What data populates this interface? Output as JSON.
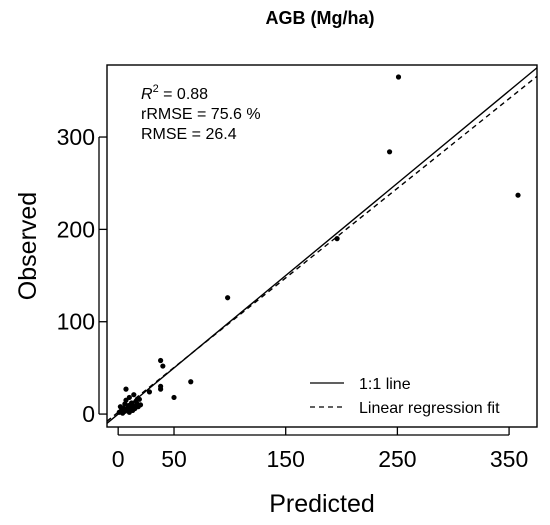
{
  "chart_data": {
    "type": "scatter",
    "title": "AGB (Mg/ha)",
    "xlabel": "Predicted",
    "ylabel": "Observed",
    "xlim": [
      -10,
      375
    ],
    "ylim": [
      -14,
      378
    ],
    "xticks": [
      0,
      50,
      150,
      250,
      350
    ],
    "xtick_labels": [
      "0",
      "50",
      "150",
      "250",
      "350"
    ],
    "yticks": [
      0,
      100,
      200,
      300
    ],
    "ytick_labels": [
      "0",
      "100",
      "200",
      "300"
    ],
    "stats": {
      "r2_prefix": "R",
      "r2_sup": "2",
      "r2_value": " = 0.88",
      "rrmse": "rRMSE = 75.6 %",
      "rmse": "RMSE = 26.4"
    },
    "points": [
      [
        1,
        2
      ],
      [
        2,
        8
      ],
      [
        3,
        4
      ],
      [
        4,
        1
      ],
      [
        5,
        6
      ],
      [
        6,
        11
      ],
      [
        6,
        3
      ],
      [
        7,
        15
      ],
      [
        7,
        27
      ],
      [
        8,
        5
      ],
      [
        9,
        9
      ],
      [
        10,
        2
      ],
      [
        10,
        18
      ],
      [
        11,
        7
      ],
      [
        12,
        12
      ],
      [
        13,
        4
      ],
      [
        14,
        21
      ],
      [
        14,
        9
      ],
      [
        15,
        6
      ],
      [
        16,
        14
      ],
      [
        17,
        11
      ],
      [
        18,
        8
      ],
      [
        19,
        16
      ],
      [
        20,
        10
      ],
      [
        28,
        24
      ],
      [
        38,
        30
      ],
      [
        38,
        27
      ],
      [
        38,
        58
      ],
      [
        40,
        52
      ],
      [
        50,
        18
      ],
      [
        65,
        35
      ],
      [
        98,
        126
      ],
      [
        196,
        190
      ],
      [
        243,
        284
      ],
      [
        251,
        365
      ],
      [
        358,
        237
      ]
    ],
    "lines": [
      {
        "name": "1:1 line",
        "style": "solid",
        "intercept": 0,
        "slope": 1
      },
      {
        "name": "Linear regression fit",
        "style": "dashed",
        "intercept": 2,
        "slope": 0.97
      }
    ],
    "legend": {
      "position": "bottom-right",
      "entries": [
        "1:1 line",
        "Linear regression fit"
      ]
    },
    "grid": false
  }
}
